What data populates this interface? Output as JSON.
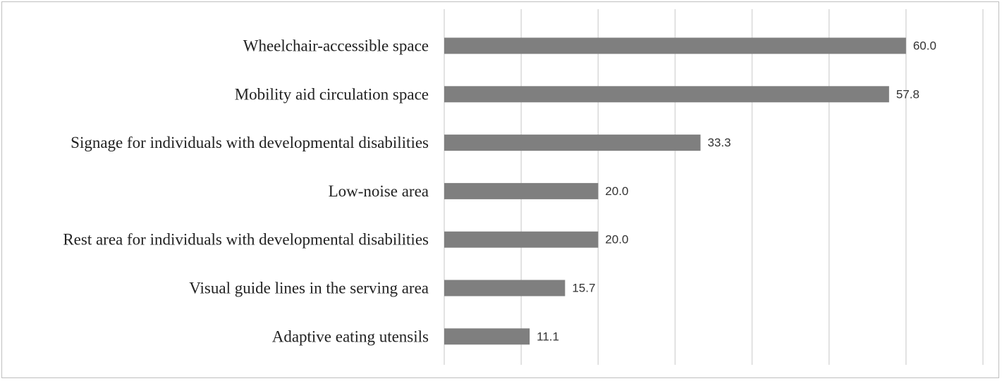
{
  "chart_data": {
    "type": "bar",
    "orientation": "horizontal",
    "categories": [
      "Wheelchair-accessible space",
      "Mobility aid circulation space",
      "Signage for individuals with developmental disabilities",
      "Low-noise area",
      "Rest area for individuals with developmental disabilities",
      "Visual guide lines in the serving area",
      "Adaptive eating utensils"
    ],
    "values": [
      60.0,
      57.8,
      33.3,
      20.0,
      20.0,
      15.7,
      11.1
    ],
    "value_labels": [
      "60.0",
      "57.8",
      "33.3",
      "20.0",
      "20.0",
      "15.7",
      "11.1"
    ],
    "xlim": [
      0,
      70
    ],
    "grid_step": 10,
    "grid": true,
    "bar_color": "#7f7f7f",
    "title": "",
    "xlabel": "",
    "ylabel": ""
  }
}
